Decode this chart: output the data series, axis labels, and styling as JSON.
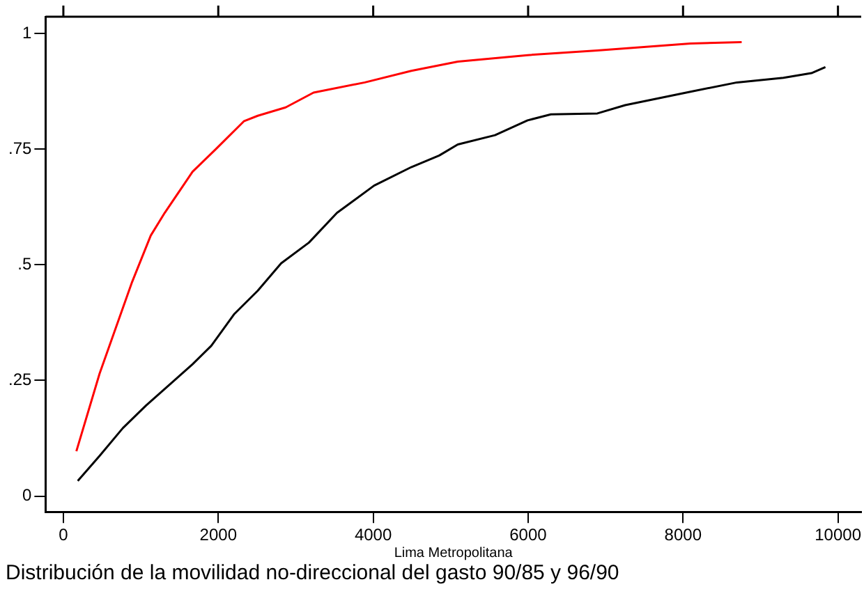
{
  "chart_data": {
    "type": "line",
    "title": "Distribución de la movilidad no-direccional del gasto 90/85 y 96/90",
    "xlabel": "Lima Metropolitana",
    "xlim": [
      -230,
      10300
    ],
    "ylim": [
      -0.034,
      1.036
    ],
    "xticks": [
      0,
      2000,
      4000,
      6000,
      8000,
      10000
    ],
    "yticks": [
      0,
      {
        "value": 0.25,
        "label": ".25"
      },
      {
        "value": 0.5,
        "label": ".5"
      },
      {
        "value": 0.75,
        "label": ".75"
      },
      1
    ],
    "grid": false,
    "legend": false,
    "marker": "none",
    "line_style": "solid",
    "series": [
      {
        "color": "#ff0000",
        "x": [
          168,
          468,
          888,
          1128,
          1308,
          1668,
          1969,
          2330,
          2510,
          2870,
          3230,
          3892,
          4492,
          4854,
          5092,
          5993,
          6894,
          8096,
          8757
        ],
        "values": [
          0.097,
          0.265,
          0.463,
          0.563,
          0.612,
          0.701,
          0.75,
          0.81,
          0.822,
          0.84,
          0.872,
          0.894,
          0.919,
          0.931,
          0.939,
          0.953,
          0.963,
          0.978,
          0.981
        ]
      },
      {
        "color": "#000000",
        "x": [
          186,
          468,
          768,
          1068,
          1668,
          1910,
          2209,
          2510,
          2811,
          3171,
          3532,
          4011,
          4492,
          4852,
          5092,
          5573,
          5993,
          6294,
          6894,
          7254,
          8096,
          8696,
          9296,
          9657,
          9838
        ],
        "values": [
          0.033,
          0.087,
          0.147,
          0.196,
          0.285,
          0.325,
          0.394,
          0.444,
          0.503,
          0.548,
          0.612,
          0.671,
          0.711,
          0.736,
          0.76,
          0.78,
          0.812,
          0.825,
          0.827,
          0.845,
          0.874,
          0.894,
          0.904,
          0.914,
          0.927
        ]
      }
    ]
  }
}
